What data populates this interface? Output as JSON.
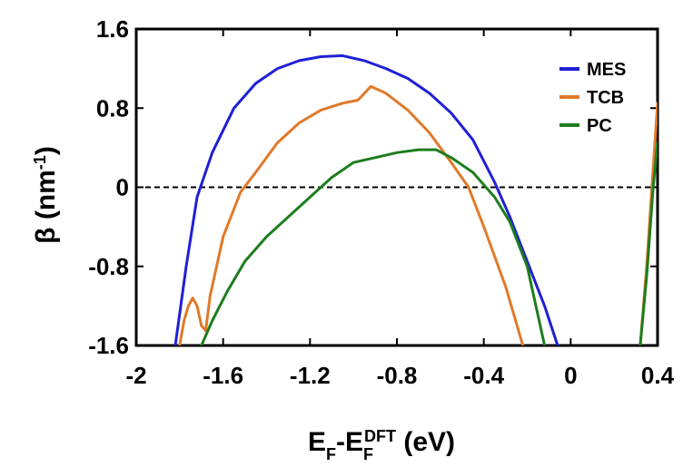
{
  "chart_data": {
    "type": "line",
    "title": "",
    "xlabel": "E_F-E_F^DFT (eV)",
    "xlabel_parts": {
      "main1": "E",
      "sub1": "F",
      "dash": "-E",
      "sub2": "F",
      "sup": "DFT",
      "unit": " (eV)"
    },
    "ylabel": "β (nm^-1)",
    "ylabel_parts": {
      "main": "β (nm",
      "sup": "-1",
      "close": ")"
    },
    "xlim": [
      -2,
      0.4
    ],
    "ylim": [
      -1.6,
      1.6
    ],
    "x_ticks": [
      "-2",
      "-1.6",
      "-1.2",
      "-0.8",
      "-0.4",
      "0",
      "0.4"
    ],
    "x_tick_values": [
      -2,
      -1.6,
      -1.2,
      -0.8,
      -0.4,
      0,
      0.4
    ],
    "y_ticks": [
      "1.6",
      "0.8",
      "0",
      "-0.8",
      "-1.6"
    ],
    "y_tick_values": [
      1.6,
      0.8,
      0,
      -0.8,
      -1.6
    ],
    "legend_position": "top-right",
    "reference_line": {
      "y": 0,
      "style": "dashed",
      "color": "#000000"
    },
    "series": [
      {
        "name": "MES",
        "color": "#1f1fd6",
        "x": [
          -1.82,
          -1.77,
          -1.72,
          -1.65,
          -1.55,
          -1.45,
          -1.35,
          -1.25,
          -1.15,
          -1.05,
          -0.95,
          -0.85,
          -0.75,
          -0.65,
          -0.55,
          -0.45,
          -0.35,
          -0.28,
          -0.2,
          -0.12,
          -0.06
        ],
        "y": [
          -1.6,
          -0.8,
          -0.1,
          0.35,
          0.8,
          1.05,
          1.2,
          1.28,
          1.32,
          1.33,
          1.28,
          1.2,
          1.1,
          0.95,
          0.75,
          0.48,
          0.05,
          -0.3,
          -0.75,
          -1.2,
          -1.6
        ]
      },
      {
        "name": "TCB",
        "color": "#e07a2a",
        "x": [
          -1.8,
          -1.78,
          -1.76,
          -1.74,
          -1.72,
          -1.7,
          -1.68,
          -1.66,
          -1.6,
          -1.52,
          -1.45,
          -1.35,
          -1.25,
          -1.15,
          -1.05,
          -0.98,
          -0.92,
          -0.85,
          -0.75,
          -0.65,
          -0.55,
          -0.47,
          -0.4,
          -0.3,
          -0.22
        ],
        "y": [
          -1.6,
          -1.35,
          -1.2,
          -1.12,
          -1.2,
          -1.4,
          -1.45,
          -1.1,
          -0.5,
          -0.05,
          0.15,
          0.45,
          0.65,
          0.78,
          0.85,
          0.88,
          1.02,
          0.95,
          0.78,
          0.55,
          0.25,
          0.0,
          -0.4,
          -1.0,
          -1.6
        ]
      },
      {
        "name": "PC",
        "color": "#1e7d1e",
        "x": [
          -1.7,
          -1.65,
          -1.58,
          -1.5,
          -1.4,
          -1.3,
          -1.2,
          -1.1,
          -1.0,
          -0.9,
          -0.8,
          -0.7,
          -0.62,
          -0.55,
          -0.45,
          -0.35,
          -0.28,
          -0.2,
          -0.12
        ],
        "y": [
          -1.6,
          -1.35,
          -1.05,
          -0.75,
          -0.5,
          -0.3,
          -0.1,
          0.1,
          0.25,
          0.3,
          0.35,
          0.38,
          0.38,
          0.3,
          0.15,
          -0.1,
          -0.35,
          -0.8,
          -1.6
        ]
      },
      {
        "name": "",
        "color": "#e07a2a",
        "x": [
          0.32,
          0.35,
          0.38,
          0.4
        ],
        "y": [
          -1.6,
          -0.8,
          0.2,
          0.85
        ]
      },
      {
        "name": "",
        "color": "#1e7d1e",
        "x": [
          0.32,
          0.35,
          0.38,
          0.4
        ],
        "y": [
          -1.6,
          -0.9,
          0.0,
          0.45
        ]
      }
    ]
  }
}
